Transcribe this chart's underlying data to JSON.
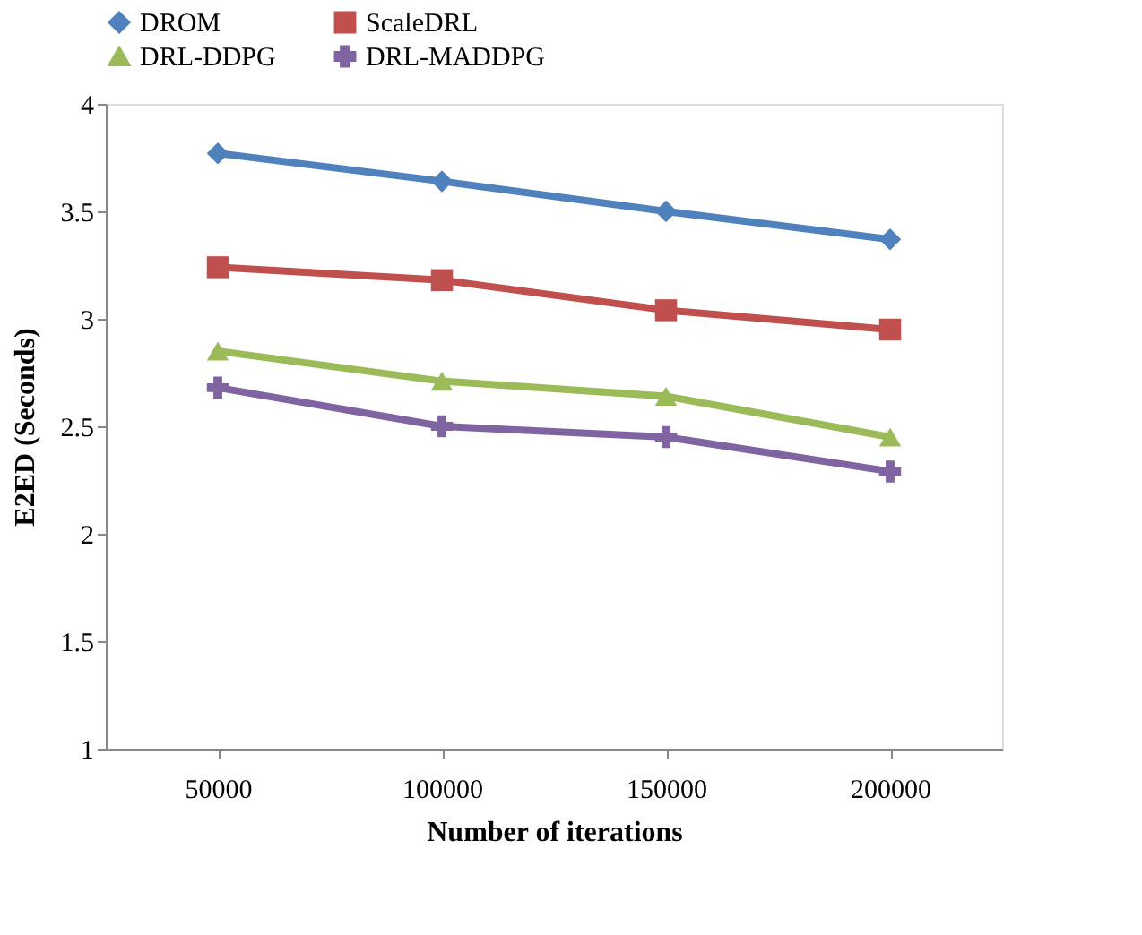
{
  "chart_data": {
    "type": "line",
    "xlabel": "Number of iterations",
    "ylabel": "E2ED (Seconds)",
    "categories": [
      "50000",
      "100000",
      "150000",
      "200000"
    ],
    "series": [
      {
        "name": "DROM",
        "color": "#4f81bd",
        "marker": "diamond",
        "values": [
          3.77,
          3.64,
          3.5,
          3.37
        ]
      },
      {
        "name": "ScaleDRL",
        "color": "#c0504d",
        "marker": "square",
        "values": [
          3.24,
          3.18,
          3.04,
          2.95
        ]
      },
      {
        "name": "DRL-DDPG",
        "color": "#9bbb59",
        "marker": "triangle",
        "values": [
          2.85,
          2.71,
          2.64,
          2.45
        ]
      },
      {
        "name": "DRL-MADDPG",
        "color": "#8064a2",
        "marker": "cross",
        "values": [
          2.68,
          2.5,
          2.45,
          2.29
        ]
      }
    ],
    "ylim": [
      1,
      4
    ],
    "yticks": [
      1,
      1.5,
      2,
      2.5,
      3,
      3.5,
      4
    ],
    "grid": false,
    "legend": "top",
    "line_style": "solid"
  }
}
